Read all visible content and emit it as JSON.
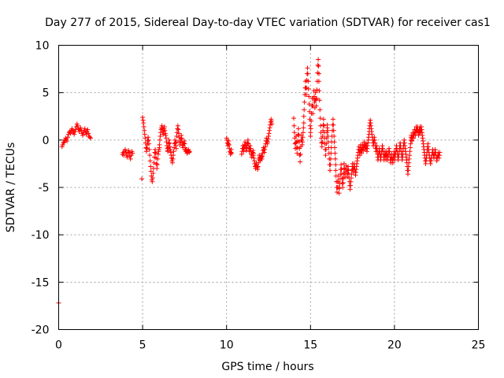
{
  "chart_data": {
    "type": "scatter",
    "title": "Day 277 of 2015, Sidereal Day-to-day VTEC variation (SDTVAR) for receiver cas1",
    "xlabel": "GPS time / hours",
    "ylabel": "SDTVAR / TECUs",
    "xlim": [
      0,
      25
    ],
    "ylim": [
      -20,
      10
    ],
    "xticks": [
      "0",
      "5",
      "10",
      "15",
      "20",
      "25"
    ],
    "yticks": [
      "-20",
      "-15",
      "-10",
      "-5",
      "0",
      "5",
      "10"
    ],
    "grid": true,
    "marker": "plus",
    "color": "#ff0000",
    "series": [
      {
        "name": "cas1",
        "segments": [
          {
            "start": 0.0,
            "end": 0.0,
            "step": 0.02,
            "y": [
              -17.2
            ]
          },
          {
            "start": 0.2,
            "end": 1.9,
            "step": 0.0425,
            "y": [
              -0.7,
              -0.5,
              -0.3,
              -0.2,
              0.0,
              0.2,
              0.1,
              -0.1,
              0.3,
              0.6,
              0.8,
              0.9,
              0.7,
              1.0,
              1.2,
              1.0,
              0.8,
              0.6,
              0.9,
              1.1,
              1.4,
              1.7,
              1.5,
              1.2,
              0.9,
              1.1,
              1.3,
              1.0,
              0.7,
              0.5,
              0.8,
              1.0,
              1.2,
              0.8,
              0.6,
              0.9,
              1.1,
              0.7,
              0.4,
              0.3,
              0.2
            ]
          },
          {
            "start": 3.8,
            "end": 4.4,
            "step": 0.04,
            "y": [
              -1.5,
              -1.3,
              -1.6,
              -1.2,
              -1.0,
              -1.3,
              -1.6,
              -1.8,
              -1.4,
              -1.1,
              -1.3,
              -1.7,
              -2.0,
              -1.6,
              -1.2,
              -1.4
            ]
          },
          {
            "start": 4.95,
            "end": 4.95,
            "step": 0.02,
            "y": [
              -4.1
            ]
          },
          {
            "start": 5.0,
            "end": 6.0,
            "step": 0.025,
            "y": [
              2.4,
              2.1,
              1.8,
              1.4,
              1.0,
              0.6,
              0.2,
              -0.3,
              -0.8,
              -1.2,
              -0.9,
              -0.5,
              -0.1,
              0.3,
              0.0,
              -0.4,
              -1.0,
              -1.6,
              -2.2,
              -2.8,
              -3.3,
              -3.8,
              -4.2,
              -4.4,
              -4.0,
              -3.5,
              -3.0,
              -2.4,
              -1.8,
              -1.3,
              -1.0,
              -1.4,
              -1.9,
              -2.5,
              -3.0,
              -2.6,
              -2.0,
              -1.5,
              -1.2,
              -1.0,
              -0.8
            ]
          },
          {
            "start": 6.0,
            "end": 6.5,
            "step": 0.025,
            "y": [
              -0.5,
              0.0,
              0.4,
              0.8,
              1.1,
              1.3,
              1.5,
              1.2,
              0.9,
              0.6,
              0.9,
              1.2,
              1.4,
              1.0,
              0.7,
              0.5,
              0.2,
              -0.2,
              -0.6,
              -0.9,
              -1.1
            ]
          },
          {
            "start": 6.5,
            "end": 7.0,
            "step": 0.025,
            "y": [
              -1.2,
              -0.8,
              -0.4,
              0.0,
              -0.3,
              -0.7,
              -1.0,
              -1.3,
              -1.6,
              -1.9,
              -2.2,
              -2.4,
              -2.0,
              -1.6,
              -1.2,
              -0.8,
              -0.4,
              0.0,
              -0.3,
              -0.6,
              -0.9
            ]
          },
          {
            "start": 7.0,
            "end": 7.6,
            "step": 0.025,
            "y": [
              -0.2,
              0.4,
              0.8,
              1.2,
              1.5,
              1.1,
              0.7,
              0.3,
              -0.1,
              -0.5,
              -0.3,
              0.1,
              0.5,
              0.2,
              -0.2,
              -0.5,
              -0.8,
              -0.6,
              -0.3,
              -0.1,
              -0.4,
              -0.8,
              -1.0,
              -1.2,
              -1.1
            ]
          },
          {
            "start": 7.6,
            "end": 7.8,
            "step": 0.025,
            "y": [
              -1.0,
              -1.2,
              -1.4,
              -1.3,
              -1.1,
              -1.0,
              -1.2,
              -1.3,
              -1.2
            ]
          },
          {
            "start": 10.0,
            "end": 10.3,
            "step": 0.025,
            "y": [
              0.2,
              0.0,
              -0.3,
              -0.6,
              -0.4,
              -0.1,
              -0.5,
              -0.9,
              -1.2,
              -1.5,
              -1.3,
              -1.0,
              -1.4
            ]
          },
          {
            "start": 10.9,
            "end": 11.6,
            "step": 0.025,
            "y": [
              -1.5,
              -1.2,
              -0.9,
              -0.6,
              -0.9,
              -1.2,
              -0.8,
              -0.5,
              -0.2,
              -0.5,
              -0.8,
              -1.1,
              -0.9,
              -0.6,
              -0.3,
              0.0,
              -0.4,
              -0.8,
              -1.2,
              -0.9,
              -0.6,
              -0.9,
              -1.2,
              -1.5,
              -1.8,
              -1.6,
              -1.3,
              -1.1,
              -1.4
            ]
          },
          {
            "start": 11.6,
            "end": 12.0,
            "step": 0.025,
            "y": [
              -1.6,
              -1.9,
              -2.2,
              -2.5,
              -2.8,
              -3.0,
              -2.7,
              -2.4,
              -2.6,
              -2.9,
              -3.1,
              -2.8,
              -2.4,
              -2.0,
              -1.6,
              -1.8,
              -2.1
            ]
          },
          {
            "start": 12.0,
            "end": 12.7,
            "step": 0.025,
            "y": [
              -2.2,
              -1.9,
              -1.6,
              -1.8,
              -2.0,
              -1.7,
              -1.4,
              -1.1,
              -0.8,
              -1.0,
              -1.3,
              -1.0,
              -0.7,
              -0.4,
              -0.1,
              0.2,
              -0.1,
              -0.4,
              -0.2,
              0.1,
              0.4,
              0.7,
              1.0,
              1.3,
              1.6,
              1.9,
              2.2,
              2.0,
              1.7
            ]
          },
          {
            "start": 14.0,
            "end": 14.6,
            "step": 0.02,
            "y": [
              2.3,
              1.5,
              0.8,
              0.2,
              -0.4,
              -0.9,
              -0.3,
              0.4,
              -0.2,
              -0.8,
              -1.4,
              -0.8,
              -0.1,
              0.6,
              1.2,
              0.5,
              -0.2,
              -0.9,
              -1.6,
              -2.3,
              -1.5,
              -0.7,
              0.0,
              0.5,
              0.0,
              -0.5,
              -0.2,
              0.3,
              0.8,
              1.3,
              1.8
            ]
          },
          {
            "start": 14.6,
            "end": 15.0,
            "step": 0.02,
            "y": [
              2.5,
              3.2,
              4.0,
              4.8,
              5.5,
              6.2,
              5.5,
              4.8,
              5.5,
              6.3,
              7.0,
              7.6,
              7.0,
              6.2,
              5.4,
              4.6,
              3.8,
              3.0,
              2.2,
              1.5,
              0.8
            ]
          },
          {
            "start": 15.0,
            "end": 15.5,
            "step": 0.02,
            "y": [
              0.4,
              1.2,
              2.0,
              2.8,
              3.6,
              4.4,
              3.6,
              2.8,
              3.6,
              4.4,
              5.2,
              4.6,
              4.0,
              3.4,
              4.2,
              5.0,
              4.3,
              3.6,
              4.4,
              5.3,
              6.2,
              7.1,
              7.9,
              8.5,
              7.8,
              7.0
            ]
          },
          {
            "start": 15.5,
            "end": 16.0,
            "step": 0.02,
            "y": [
              6.2,
              5.2,
              4.2,
              3.2,
              2.3,
              1.5,
              0.8,
              0.2,
              -0.3,
              -0.7,
              -0.2,
              0.4,
              1.0,
              1.6,
              2.2,
              1.5,
              0.8,
              0.2,
              -0.4,
              -1.0,
              -1.6,
              -1.0,
              -0.4,
              0.2,
              0.8,
              1.3
            ]
          },
          {
            "start": 16.0,
            "end": 16.5,
            "step": 0.02,
            "y": [
              1.6,
              1.0,
              0.4,
              -0.2,
              -0.8,
              -1.4,
              -2.0,
              -2.6,
              -3.2,
              -2.6,
              -2.0,
              -1.4,
              -0.8,
              -0.2,
              0.4,
              1.0,
              1.6,
              2.2,
              1.6,
              1.0,
              0.4,
              -0.2,
              -0.8,
              -1.4,
              -2.0,
              -2.6
            ]
          },
          {
            "start": 16.5,
            "end": 17.0,
            "step": 0.02,
            "y": [
              -3.2,
              -3.8,
              -4.4,
              -5.0,
              -5.5,
              -5.0,
              -4.4,
              -3.8,
              -4.4,
              -5.0,
              -5.6,
              -5.1,
              -4.6,
              -4.1,
              -3.6,
              -3.1,
              -2.6,
              -3.1,
              -3.6,
              -4.1,
              -4.6,
              -5.0,
              -4.5,
              -4.0,
              -3.5,
              -3.0
            ]
          },
          {
            "start": 17.0,
            "end": 17.5,
            "step": 0.02,
            "y": [
              -2.5,
              -3.0,
              -3.5,
              -3.9,
              -3.5,
              -3.1,
              -2.7,
              -3.1,
              -3.5,
              -3.9,
              -3.5,
              -3.1,
              -2.8,
              -3.2,
              -3.6,
              -4.0,
              -4.4,
              -4.8,
              -5.2,
              -4.8,
              -4.4,
              -4.0,
              -3.6,
              -3.2,
              -2.8,
              -2.5
            ]
          },
          {
            "start": 17.5,
            "end": 18.0,
            "step": 0.02,
            "y": [
              -2.8,
              -3.1,
              -3.4,
              -3.1,
              -2.8,
              -2.5,
              -2.8,
              -3.1,
              -3.4,
              -3.7,
              -3.4,
              -3.1,
              -2.8,
              -2.5,
              -2.2,
              -1.9,
              -1.6,
              -1.3,
              -1.0,
              -0.7,
              -1.0,
              -1.3,
              -1.6,
              -1.2,
              -0.8,
              -0.5
            ]
          },
          {
            "start": 18.0,
            "end": 18.5,
            "step": 0.02,
            "y": [
              -0.8,
              -1.1,
              -1.4,
              -1.1,
              -0.8,
              -0.5,
              -0.8,
              -1.1,
              -0.8,
              -0.5,
              -0.2,
              -0.5,
              -0.8,
              -1.0,
              -0.7,
              -0.4,
              -0.6,
              -0.9,
              -1.2,
              -0.9,
              -0.6,
              -0.3,
              0.0,
              0.3,
              0.6,
              0.9
            ]
          },
          {
            "start": 18.5,
            "end": 19.0,
            "step": 0.02,
            "y": [
              1.2,
              1.5,
              1.8,
              2.1,
              1.8,
              1.5,
              1.2,
              0.9,
              0.6,
              0.3,
              0.0,
              -0.3,
              -0.6,
              -0.3,
              0.0,
              0.3,
              0.0,
              -0.3,
              -0.6,
              -0.9,
              -1.2,
              -0.9,
              -0.6,
              -0.9,
              -1.2,
              -1.5
            ]
          },
          {
            "start": 19.0,
            "end": 19.5,
            "step": 0.02,
            "y": [
              -1.8,
              -2.1,
              -1.8,
              -1.5,
              -1.2,
              -0.9,
              -1.2,
              -1.5,
              -1.8,
              -2.1,
              -1.8,
              -1.5,
              -1.2,
              -0.9,
              -0.6,
              -0.9,
              -1.2,
              -1.5,
              -1.8,
              -2.1,
              -1.8,
              -1.5,
              -1.2,
              -1.5,
              -1.8,
              -2.1
            ]
          },
          {
            "start": 19.5,
            "end": 20.0,
            "step": 0.02,
            "y": [
              -1.8,
              -1.5,
              -1.2,
              -1.5,
              -1.8,
              -2.1,
              -1.8,
              -1.5,
              -1.2,
              -0.9,
              -1.2,
              -1.5,
              -1.8,
              -2.1,
              -2.4,
              -2.1,
              -1.8,
              -1.5,
              -1.8,
              -2.1,
              -2.4,
              -2.1,
              -1.8,
              -1.5,
              -1.2,
              -1.5
            ]
          },
          {
            "start": 20.0,
            "end": 20.5,
            "step": 0.02,
            "y": [
              -1.8,
              -2.1,
              -1.8,
              -1.5,
              -1.2,
              -0.9,
              -0.6,
              -0.9,
              -1.2,
              -1.5,
              -1.8,
              -2.1,
              -1.8,
              -1.5,
              -1.2,
              -0.9,
              -0.6,
              -0.3,
              -0.6,
              -0.9,
              -1.2,
              -1.5,
              -1.8,
              -2.1,
              -1.8,
              -1.5
            ]
          },
          {
            "start": 20.5,
            "end": 21.0,
            "step": 0.02,
            "y": [
              -1.2,
              -0.9,
              -0.6,
              -0.3,
              0.0,
              -0.3,
              -0.6,
              -0.9,
              -1.2,
              -1.5,
              -1.8,
              -2.1,
              -2.4,
              -2.8,
              -3.2,
              -3.6,
              -3.2,
              -2.8,
              -2.4,
              -2.0,
              -1.6,
              -1.2,
              -0.8,
              -0.4,
              0.0,
              0.3
            ]
          },
          {
            "start": 21.0,
            "end": 21.5,
            "step": 0.02,
            "y": [
              0.5,
              0.2,
              -0.1,
              0.2,
              0.5,
              0.8,
              0.5,
              0.2,
              0.5,
              0.8,
              1.1,
              0.8,
              0.5,
              0.8,
              1.1,
              1.4,
              1.1,
              0.8,
              1.1,
              1.4,
              1.1,
              0.8,
              0.5,
              0.8,
              1.1,
              0.8
            ]
          },
          {
            "start": 21.5,
            "end": 22.0,
            "step": 0.02,
            "y": [
              1.1,
              1.4,
              1.1,
              0.8,
              1.1,
              1.4,
              1.1,
              0.8,
              0.5,
              0.2,
              -0.1,
              -0.4,
              -0.7,
              -1.0,
              -1.3,
              -1.6,
              -1.9,
              -2.2,
              -2.5,
              -2.2,
              -1.9,
              -1.6,
              -1.3,
              -1.0,
              -0.7,
              -0.4
            ]
          },
          {
            "start": 22.0,
            "end": 22.7,
            "step": 0.025,
            "y": [
              -0.7,
              -1.0,
              -1.3,
              -1.6,
              -1.9,
              -2.2,
              -2.5,
              -2.2,
              -1.9,
              -1.6,
              -1.3,
              -1.0,
              -1.3,
              -1.6,
              -1.9,
              -1.6,
              -1.3,
              -1.0,
              -1.3,
              -1.6,
              -1.9,
              -2.2,
              -1.9,
              -1.6,
              -1.3,
              -1.6,
              -1.9,
              -1.6,
              -1.3
            ]
          }
        ]
      }
    ]
  }
}
